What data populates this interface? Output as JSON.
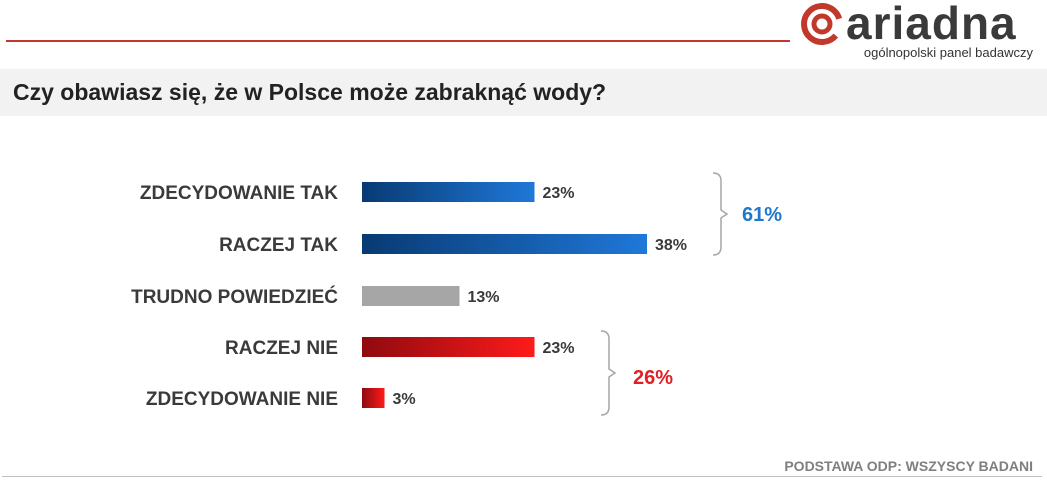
{
  "brand": {
    "name": "ariadna",
    "tagline": "ogólnopolski panel badawczy",
    "accent": "#c0392b"
  },
  "title": "Czy obawiasz się, że w Polsce może zabraknąć wody?",
  "footer": "PODSTAWA ODP: WSZYSCY BADANI",
  "chart_data": {
    "type": "bar",
    "orientation": "horizontal",
    "categories": [
      "ZDECYDOWANIE TAK",
      "RACZEJ TAK",
      "TRUDNO POWIEDZIEĆ",
      "RACZEJ NIE",
      "ZDECYDOWANIE NIE"
    ],
    "values": [
      23,
      38,
      13,
      23,
      3
    ],
    "value_labels": [
      "23%",
      "38%",
      "13%",
      "23%",
      "3%"
    ],
    "unit": "%",
    "colors": [
      "#1f5fa8",
      "#1f5fa8",
      "#a6a6a6",
      "#e31e24",
      "#e31e24"
    ],
    "groups": [
      {
        "label": "61%",
        "members": [
          0,
          1
        ],
        "color": "#1f78c8"
      },
      {
        "label": "26%",
        "members": [
          3,
          4
        ],
        "color": "#e31e24"
      }
    ],
    "xlim": [
      0,
      40
    ],
    "grid": false,
    "legend": "none"
  }
}
